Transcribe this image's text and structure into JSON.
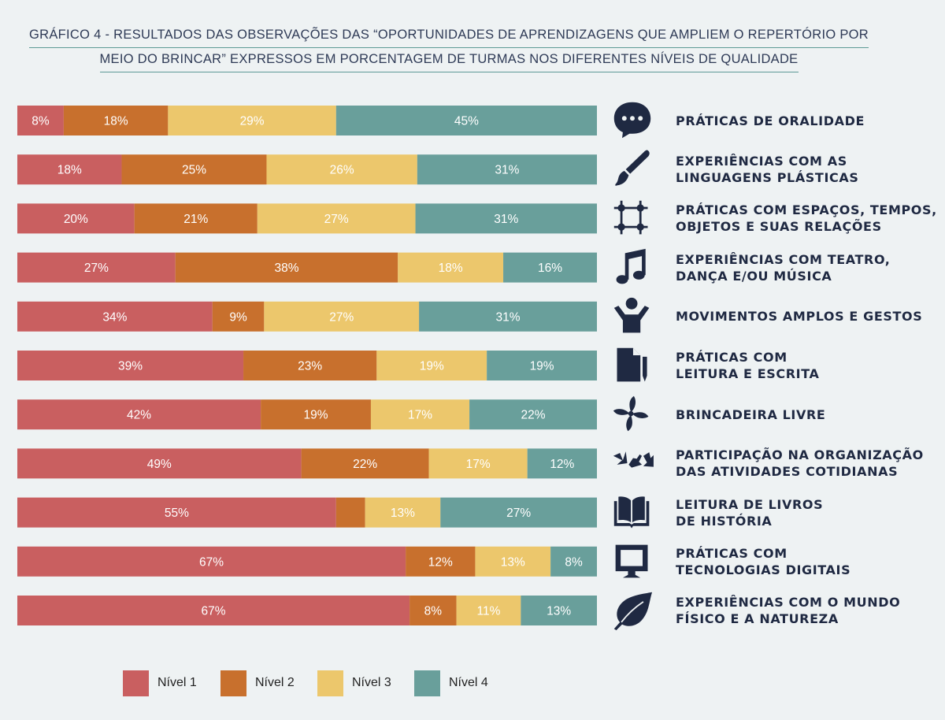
{
  "title": {
    "line1": "GRÁFICO 4 - RESULTADOS DAS OBSERVAÇÕES DAS “OPORTUNIDADES DE APRENDIZAGENS QUE AMPLIEM O REPERTÓRIO POR",
    "line2": "MEIO DO BRINCAR” EXPRESSOS EM PORCENTAGEM DE TURMAS NOS DIFERENTES NÍVEIS DE QUALIDADE"
  },
  "colors": {
    "nivel1": "#c95f60",
    "nivel2": "#c8702d",
    "nivel3": "#ecc76c",
    "nivel4": "#699f9b",
    "icon": "#1f2942"
  },
  "chart_data": {
    "type": "bar",
    "orientation": "horizontal",
    "stacked": true,
    "unit": "%",
    "xlim": [
      0,
      100
    ],
    "categories": [
      {
        "line1": "PRÁTICAS DE ORALIDADE",
        "line2": "",
        "icon": "speech-bubble-icon"
      },
      {
        "line1": "EXPERIÊNCIAS COM AS",
        "line2": "LINGUAGENS PLÁSTICAS",
        "icon": "paintbrush-icon"
      },
      {
        "line1": "PRÁTICAS COM ESPAÇOS, TEMPOS,",
        "line2": "OBJETOS E SUAS RELAÇÕES",
        "icon": "frame-grid-icon"
      },
      {
        "line1": "EXPERIÊNCIAS COM TEATRO,",
        "line2": "DANÇA E/OU MÚSICA",
        "icon": "music-note-icon"
      },
      {
        "line1": "MOVIMENTOS AMPLOS E GESTOS",
        "line2": "",
        "icon": "person-arms-up-icon"
      },
      {
        "line1": "PRÁTICAS COM",
        "line2": "LEITURA E ESCRITA",
        "icon": "document-pencil-icon"
      },
      {
        "line1": "BRINCADEIRA LIVRE",
        "line2": "",
        "icon": "pinwheel-icon"
      },
      {
        "line1": "PARTICIPAÇÃO NA ORGANIZAÇÃO",
        "line2": "DAS ATIVIDADES COTIDIANAS",
        "icon": "arrows-icon"
      },
      {
        "line1": "LEITURA DE LIVROS",
        "line2": "DE HISTÓRIA",
        "icon": "open-book-icon"
      },
      {
        "line1": "PRÁTICAS COM",
        "line2": "TECNOLOGIAS DIGITAIS",
        "icon": "monitor-icon"
      },
      {
        "line1": "EXPERIÊNCIAS COM O MUNDO",
        "line2": "FÍSICO E A NATUREZA",
        "icon": "leaf-icon"
      }
    ],
    "series": [
      {
        "name": "Nível 1",
        "values": [
          8,
          18,
          20,
          27,
          34,
          39,
          42,
          49,
          55,
          67,
          67
        ],
        "labels": [
          "8%",
          "18%",
          "20%",
          "27%",
          "34%",
          "39%",
          "42%",
          "49%",
          "55%",
          "67%",
          "67%"
        ]
      },
      {
        "name": "Nível 2",
        "values": [
          18,
          25,
          21,
          38,
          9,
          23,
          19,
          22,
          5,
          12,
          8
        ],
        "labels": [
          "18%",
          "25%",
          "21%",
          "38%",
          "9%",
          "23%",
          "19%",
          "22%",
          "",
          "12%",
          "8%"
        ]
      },
      {
        "name": "Nível 3",
        "values": [
          29,
          26,
          27,
          18,
          27,
          19,
          17,
          17,
          13,
          13,
          11
        ],
        "labels": [
          "29%",
          "26%",
          "27%",
          "18%",
          "27%",
          "19%",
          "17%",
          "17%",
          "13%",
          "13%",
          "11%"
        ]
      },
      {
        "name": "Nível 4",
        "values": [
          45,
          31,
          31,
          16,
          31,
          19,
          22,
          12,
          27,
          8,
          13
        ],
        "labels": [
          "45%",
          "31%",
          "31%",
          "16%",
          "31%",
          "19%",
          "22%",
          "12%",
          "27%",
          "8%",
          "13%"
        ]
      }
    ],
    "legend_position": "bottom"
  }
}
